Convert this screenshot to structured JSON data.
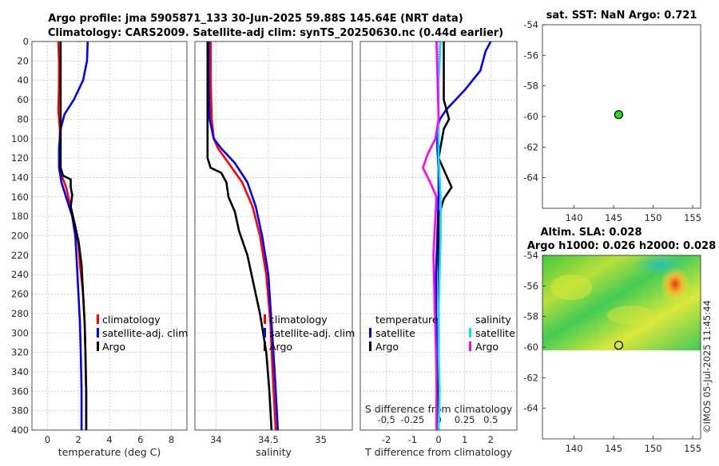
{
  "title": {
    "line1": "Argo profile: jma 5905871_133 30-Jun-2025 59.88S 145.64E (NRT data)",
    "line2": "Climatology: CARS2009. Satellite-adj clim: synTS_20250630.nc (0.44d earlier)"
  },
  "watermark": "©IMOS 05-Jul-2025 11:45:44",
  "colors": {
    "climatology": "#ff0000",
    "satellite": "#0000ff",
    "argo": "#000000",
    "sat_salinity": "#00e5ff",
    "argo_salinity": "#ff00ff",
    "marker": "#22dd22"
  },
  "depth_ticks": [
    "0",
    "20",
    "40",
    "60",
    "80",
    "100",
    "120",
    "140",
    "160",
    "180",
    "200",
    "220",
    "240",
    "260",
    "280",
    "300",
    "320",
    "340",
    "360",
    "380",
    "400"
  ],
  "chart_data": [
    {
      "name": "temperature-profile",
      "type": "line",
      "xlabel": "temperature (deg C)",
      "ylabel": "",
      "xlim": [
        -1,
        9
      ],
      "ylim": [
        400,
        0
      ],
      "xticks": [
        0,
        2,
        4,
        6,
        8
      ],
      "xtick_labels": [
        "0",
        "2",
        "4",
        "6",
        "8"
      ],
      "legend": [
        "climatology",
        "satellite-adj. clim",
        "Argo"
      ],
      "series": [
        {
          "name": "climatology",
          "color": "#ff0000",
          "x": [
            0.7,
            0.75,
            0.75,
            0.72,
            0.7,
            0.8,
            0.8,
            0.8,
            0.85,
            1.2,
            1.5,
            1.8,
            2.0,
            2.1,
            2.3,
            2.4,
            2.45,
            2.5,
            2.5
          ],
          "y": [
            0,
            20,
            40,
            60,
            70,
            90,
            110,
            125,
            135,
            150,
            170,
            190,
            210,
            230,
            260,
            290,
            320,
            360,
            400
          ]
        },
        {
          "name": "satellite-adj. clim",
          "color": "#0000ff",
          "x": [
            2.6,
            2.55,
            2.3,
            1.7,
            1.1,
            0.85,
            0.75,
            0.75,
            0.9,
            1.2,
            1.6,
            1.8,
            1.9,
            2.0,
            2.1,
            2.15,
            2.2,
            2.2
          ],
          "y": [
            0,
            20,
            40,
            60,
            75,
            90,
            110,
            130,
            145,
            160,
            180,
            200,
            230,
            260,
            290,
            320,
            360,
            400
          ]
        },
        {
          "name": "Argo",
          "color": "#000000",
          "x": [
            0.85,
            0.85,
            0.85,
            0.85,
            0.85,
            1.0,
            1.5,
            1.5,
            1.6,
            1.5,
            1.7,
            2.0,
            2.2,
            2.3,
            2.4,
            2.45,
            2.5,
            2.5
          ],
          "y": [
            0,
            40,
            80,
            110,
            130,
            138,
            142,
            150,
            158,
            170,
            185,
            205,
            230,
            260,
            290,
            320,
            360,
            400
          ]
        }
      ]
    },
    {
      "name": "salinity-profile",
      "type": "line",
      "xlabel": "salinity",
      "ylabel": "",
      "xlim": [
        33.8,
        35.3
      ],
      "ylim": [
        400,
        0
      ],
      "xticks": [
        34,
        34.5,
        35
      ],
      "xtick_labels": [
        "34",
        "34.5",
        "35"
      ],
      "legend": [
        "climatology",
        "satellite-adj. clim",
        "Argo"
      ],
      "series": [
        {
          "name": "climatology",
          "color": "#ff0000",
          "x": [
            33.95,
            33.95,
            33.96,
            33.98,
            34.02,
            34.12,
            34.25,
            34.35,
            34.42,
            34.48,
            34.52,
            34.54,
            34.57
          ],
          "y": [
            0,
            40,
            80,
            100,
            110,
            125,
            145,
            170,
            200,
            240,
            290,
            340,
            400
          ]
        },
        {
          "name": "satellite-adj. clim",
          "color": "#0000ff",
          "x": [
            33.93,
            33.93,
            33.94,
            33.98,
            34.05,
            34.18,
            34.3,
            34.38,
            34.44,
            34.5,
            34.53,
            34.56,
            34.59
          ],
          "y": [
            0,
            40,
            80,
            100,
            110,
            125,
            145,
            170,
            200,
            240,
            290,
            340,
            400
          ]
        },
        {
          "name": "Argo",
          "color": "#000000",
          "x": [
            33.92,
            33.92,
            33.92,
            33.92,
            33.95,
            34.05,
            34.1,
            34.12,
            34.18,
            34.22,
            34.3,
            34.36,
            34.42,
            34.48,
            34.51,
            34.53
          ],
          "y": [
            0,
            60,
            100,
            120,
            130,
            135,
            145,
            160,
            175,
            195,
            220,
            250,
            280,
            320,
            360,
            400
          ]
        }
      ]
    },
    {
      "name": "difference-profile",
      "type": "line",
      "xlabel": "T difference from climatology",
      "xlabel_top": "S difference from climatology",
      "xlim": [
        -3,
        3
      ],
      "ylim": [
        400,
        0
      ],
      "xticks": [
        -2,
        -1,
        0,
        1,
        2
      ],
      "xtick_labels": [
        "-2",
        "-1",
        "0",
        "1",
        "2"
      ],
      "s_xticks": [
        -0.5,
        -0.25,
        0,
        0.25,
        0.5
      ],
      "s_xtick_labels": [
        "-0,5",
        "-0.25",
        "0",
        "0.25",
        "0.5"
      ],
      "legend_titles": [
        "temperature",
        "salinity"
      ],
      "legend": [
        "satellite",
        "Argo",
        "satellite",
        "Argo"
      ],
      "series": [
        {
          "name": "T satellite",
          "color": "#0000ff",
          "x": [
            2.0,
            1.8,
            1.6,
            1.0,
            0.3,
            0.05,
            -0.05,
            -0.05,
            0.0,
            0.0,
            -0.05,
            -0.1,
            -0.1,
            -0.05,
            -0.05,
            -0.05,
            -0.05
          ],
          "y": [
            0,
            10,
            30,
            50,
            70,
            80,
            90,
            110,
            130,
            160,
            200,
            240,
            280,
            320,
            360,
            390,
            400
          ]
        },
        {
          "name": "T Argo",
          "color": "#000000",
          "x": [
            0.2,
            0.2,
            0.2,
            0.3,
            0.4,
            0.2,
            0.0,
            0.3,
            0.5,
            0.2,
            0.0,
            0.0,
            0.0,
            0.0,
            0.0,
            0.0
          ],
          "y": [
            0,
            30,
            60,
            70,
            80,
            90,
            120,
            138,
            150,
            162,
            180,
            220,
            280,
            320,
            360,
            400
          ]
        },
        {
          "name": "S satellite",
          "color": "#00e5ff",
          "x": [
            0.02,
            0.0,
            0.0,
            0.0,
            0.02,
            0.02,
            0.01,
            0.0,
            0.0,
            0.01,
            0.0
          ],
          "y": [
            0,
            40,
            80,
            120,
            160,
            200,
            240,
            280,
            320,
            360,
            400
          ]
        },
        {
          "name": "S Argo",
          "color": "#ff00ff",
          "x": [
            -0.02,
            -0.01,
            0.0,
            -0.03,
            -0.1,
            -0.15,
            -0.08,
            -0.02,
            -0.03,
            -0.05,
            -0.04,
            -0.03,
            -0.02,
            -0.02,
            -0.02
          ],
          "y": [
            0,
            40,
            80,
            100,
            115,
            130,
            145,
            160,
            180,
            220,
            260,
            300,
            340,
            370,
            400
          ]
        }
      ]
    },
    {
      "name": "sst-map",
      "type": "scatter",
      "title": "sat. SST: NaN Argo: 0.721",
      "xlim": [
        136,
        156
      ],
      "ylim": [
        -66,
        -54
      ],
      "xticks": [
        140,
        145,
        150,
        155
      ],
      "xtick_labels": [
        "140",
        "145",
        "150",
        "155"
      ],
      "yticks": [
        -54,
        -56,
        -58,
        -60,
        -62,
        -64
      ],
      "ytick_labels": [
        "-54",
        "-56",
        "-58",
        "-60",
        "-62",
        "-64"
      ],
      "points": [
        {
          "x": 145.64,
          "y": -59.88
        }
      ]
    },
    {
      "name": "sla-map",
      "type": "heatmap",
      "title": "Altim. SLA: 0.028",
      "subtitle": "Argo h1000: 0.026 h2000: 0.028",
      "xlim": [
        136,
        156
      ],
      "ylim": [
        -66,
        -54
      ],
      "xticks": [
        140,
        145,
        150,
        155
      ],
      "xtick_labels": [
        "140",
        "145",
        "150",
        "155"
      ],
      "yticks": [
        -54,
        -56,
        -58,
        -60,
        -62,
        -64
      ],
      "ytick_labels": [
        "-54",
        "-56",
        "-58",
        "-60",
        "-62",
        "-64"
      ],
      "data_extent": {
        "lat_min": -60,
        "lat_max": -54
      },
      "points": [
        {
          "x": 145.64,
          "y": -59.88
        }
      ]
    }
  ]
}
